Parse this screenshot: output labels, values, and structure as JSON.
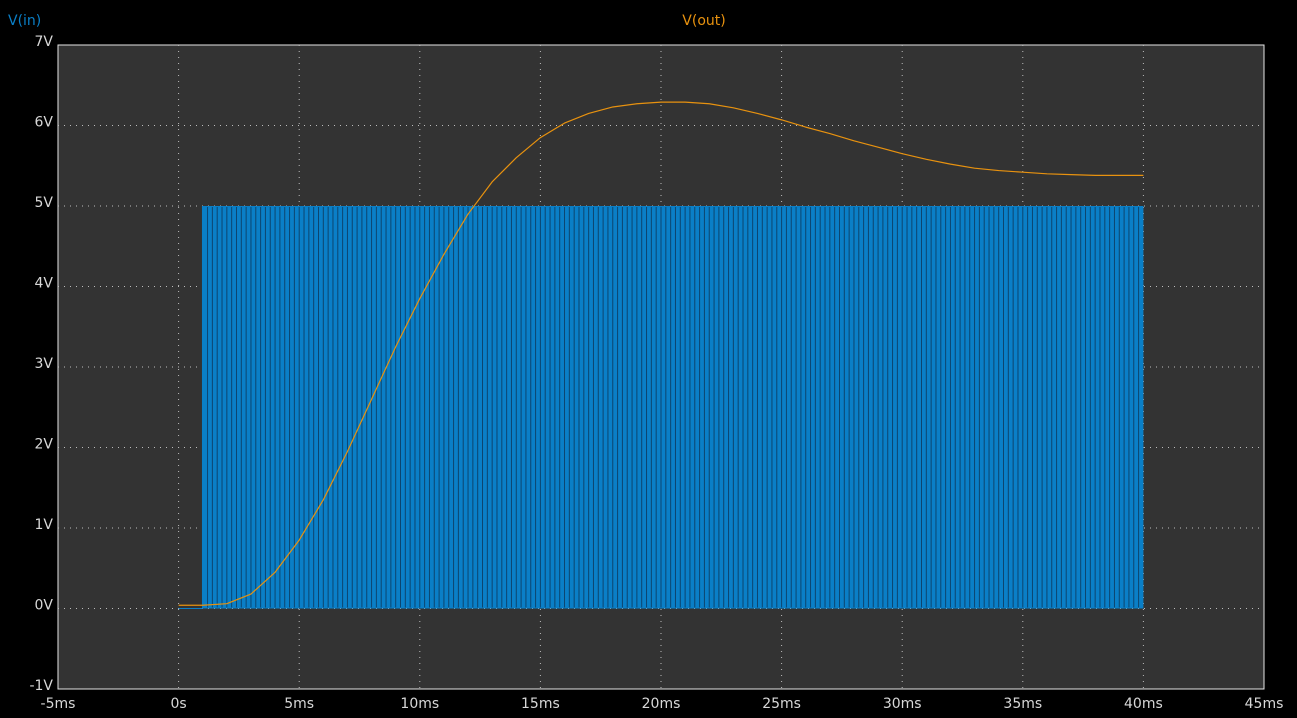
{
  "chart_data": {
    "type": "line",
    "title": "",
    "xlabel": "",
    "ylabel": "",
    "xlim": [
      -5,
      45
    ],
    "ylim": [
      -1,
      7
    ],
    "grid": true,
    "x_ticks": [
      -5,
      0,
      5,
      10,
      15,
      20,
      25,
      30,
      35,
      40,
      45
    ],
    "x_tick_labels": [
      "-5ms",
      "0s",
      "5ms",
      "10ms",
      "15ms",
      "20ms",
      "25ms",
      "30ms",
      "35ms",
      "40ms",
      "45ms"
    ],
    "y_ticks": [
      7,
      6,
      5,
      4,
      3,
      2,
      1,
      0,
      -1
    ],
    "y_tick_labels": [
      "7V",
      "6V",
      "5V",
      "4V",
      "3V",
      "2V",
      "1V",
      "0V",
      "-1V"
    ],
    "series": [
      {
        "name": "V(in)",
        "color": "#0a7fc7",
        "kind": "pwm",
        "pwm": {
          "start_ms": 1,
          "end_ms": 40,
          "high_v": 5,
          "low_v": 0,
          "pulse_count": 195
        },
        "x": [
          0,
          1,
          1,
          40,
          40
        ],
        "y": [
          0,
          0,
          5,
          5,
          0
        ]
      },
      {
        "name": "V(out)",
        "color": "#e8920f",
        "kind": "line",
        "x": [
          0,
          1,
          2,
          3,
          4,
          5,
          6,
          7,
          8,
          9,
          10,
          11,
          12,
          13,
          14,
          15,
          16,
          17,
          18,
          19,
          20,
          21,
          22,
          23,
          24,
          25,
          26,
          27,
          28,
          29,
          30,
          31,
          32,
          33,
          34,
          35,
          36,
          37,
          38,
          39,
          40
        ],
        "y": [
          0.04,
          0.04,
          0.06,
          0.18,
          0.45,
          0.85,
          1.35,
          1.95,
          2.6,
          3.25,
          3.85,
          4.4,
          4.9,
          5.3,
          5.6,
          5.85,
          6.03,
          6.15,
          6.23,
          6.27,
          6.29,
          6.29,
          6.27,
          6.22,
          6.15,
          6.07,
          5.98,
          5.9,
          5.81,
          5.73,
          5.65,
          5.58,
          5.52,
          5.47,
          5.44,
          5.42,
          5.4,
          5.39,
          5.38,
          5.38,
          5.38
        ]
      }
    ]
  }
}
